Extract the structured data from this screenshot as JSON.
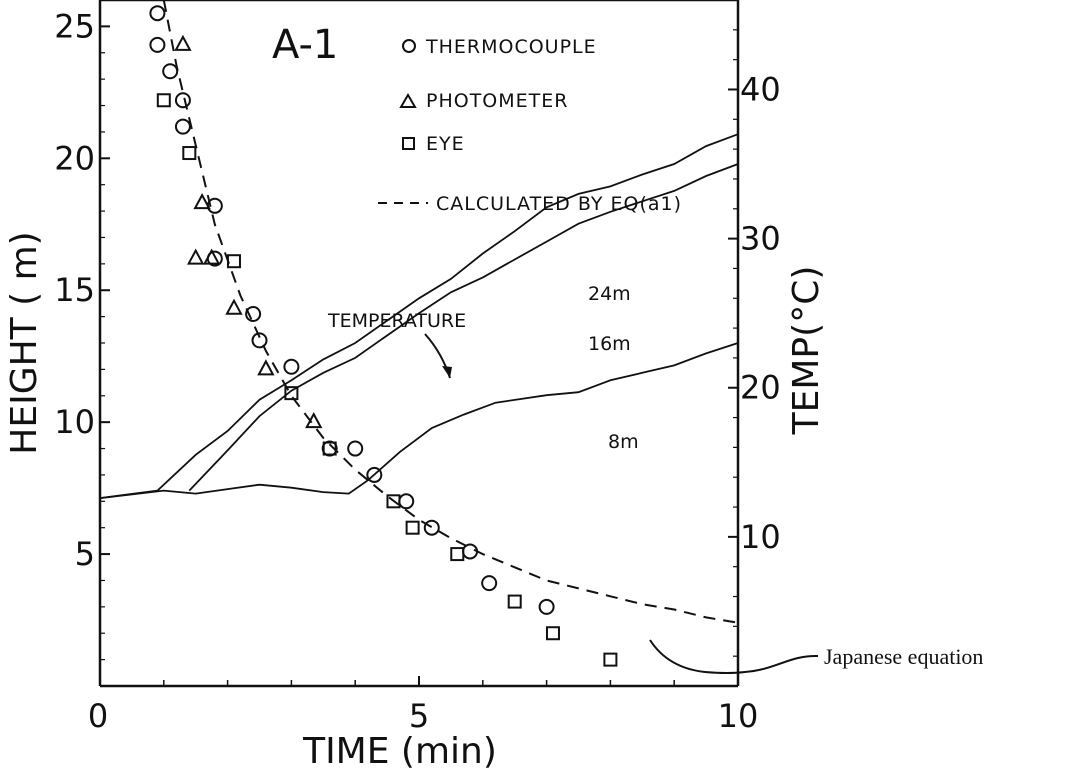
{
  "chart_data": {
    "type": "scatter",
    "panel_label": "A-1",
    "xlabel": "TIME (min)",
    "ylabel": "HEIGHT ( m)",
    "y2label": "TEMP(°C)",
    "xlim": [
      0,
      10
    ],
    "ylim": [
      0,
      26
    ],
    "y2lim": [
      0,
      46
    ],
    "x_ticks": [
      "0",
      "5",
      "10"
    ],
    "y_ticks": [
      "5",
      "10",
      "15",
      "20",
      "25"
    ],
    "y2_ticks": [
      "10",
      "20",
      "30",
      "40"
    ],
    "grid": false,
    "legend_position": "top-right",
    "legend": {
      "thermocouple": "THERMOCOUPLE",
      "photometer": "PHOTOMETER",
      "eye": "EYE",
      "calculated": "CALCULATED BY EQ(a1)"
    },
    "series": [
      {
        "name": "THERMOCOUPLE",
        "marker": "circle",
        "points": [
          [
            0.9,
            25.5
          ],
          [
            0.9,
            24.3
          ],
          [
            1.1,
            23.3
          ],
          [
            1.3,
            22.2
          ],
          [
            1.3,
            21.2
          ],
          [
            1.8,
            18.2
          ],
          [
            1.8,
            16.2
          ],
          [
            2.4,
            14.1
          ],
          [
            2.5,
            13.1
          ],
          [
            3.0,
            12.1
          ],
          [
            3.6,
            9.0
          ],
          [
            4.0,
            9.0
          ],
          [
            4.3,
            8.0
          ],
          [
            4.8,
            7.0
          ],
          [
            5.2,
            6.0
          ],
          [
            5.8,
            5.1
          ],
          [
            6.1,
            3.9
          ],
          [
            7.0,
            3.0
          ]
        ]
      },
      {
        "name": "PHOTOMETER",
        "marker": "triangle",
        "points": [
          [
            1.3,
            24.3
          ],
          [
            1.6,
            18.3
          ],
          [
            1.5,
            16.2
          ],
          [
            1.75,
            16.2
          ],
          [
            2.1,
            14.3
          ],
          [
            2.6,
            12.0
          ],
          [
            3.35,
            10.0
          ]
        ]
      },
      {
        "name": "EYE",
        "marker": "square",
        "points": [
          [
            1.0,
            22.2
          ],
          [
            1.4,
            20.2
          ],
          [
            2.1,
            16.1
          ],
          [
            3.0,
            11.1
          ],
          [
            3.6,
            9.0
          ],
          [
            4.6,
            7.0
          ],
          [
            4.9,
            6.0
          ],
          [
            5.6,
            5.0
          ],
          [
            6.5,
            3.2
          ],
          [
            7.1,
            2.0
          ],
          [
            8.0,
            1.0
          ]
        ]
      },
      {
        "name": "CALCULATED BY EQ(a1)",
        "style": "dashed",
        "points": [
          [
            1.0,
            26.0
          ],
          [
            1.2,
            23.5
          ],
          [
            1.5,
            20.5
          ],
          [
            1.8,
            17.5
          ],
          [
            2.2,
            14.8
          ],
          [
            2.6,
            12.7
          ],
          [
            3.0,
            11.0
          ],
          [
            3.5,
            9.4
          ],
          [
            4.0,
            8.2
          ],
          [
            4.5,
            7.2
          ],
          [
            5.0,
            6.3
          ],
          [
            5.5,
            5.6
          ],
          [
            6.0,
            5.0
          ],
          [
            6.5,
            4.5
          ],
          [
            7.0,
            4.0
          ],
          [
            7.5,
            3.7
          ],
          [
            8.0,
            3.4
          ],
          [
            8.5,
            3.1
          ],
          [
            9.0,
            2.9
          ],
          [
            9.5,
            2.6
          ],
          [
            10.0,
            2.4
          ]
        ]
      }
    ],
    "temperature_label": "TEMPERATURE",
    "temperature_series": [
      {
        "name": "24m",
        "points": [
          [
            0,
            12.6
          ],
          [
            0.9,
            13.1
          ],
          [
            1.5,
            15.5
          ],
          [
            2.0,
            17.1
          ],
          [
            2.5,
            19.2
          ],
          [
            3.0,
            20.5
          ],
          [
            3.5,
            21.9
          ],
          [
            4.0,
            23.0
          ],
          [
            4.5,
            24.5
          ],
          [
            5.0,
            26.0
          ],
          [
            5.5,
            27.3
          ],
          [
            6.0,
            29.0
          ],
          [
            6.5,
            30.5
          ],
          [
            7.0,
            32.1
          ],
          [
            7.5,
            33.0
          ],
          [
            8.0,
            33.5
          ],
          [
            8.5,
            34.3
          ],
          [
            9.0,
            35.0
          ],
          [
            9.5,
            36.2
          ],
          [
            10.0,
            37.0
          ]
        ]
      },
      {
        "name": "16m",
        "points": [
          [
            1.4,
            13.1
          ],
          [
            2.0,
            15.8
          ],
          [
            2.5,
            18.1
          ],
          [
            3.0,
            19.8
          ],
          [
            3.5,
            21.0
          ],
          [
            4.0,
            22.0
          ],
          [
            4.5,
            23.5
          ],
          [
            5.0,
            25.0
          ],
          [
            5.5,
            26.4
          ],
          [
            6.0,
            27.4
          ],
          [
            6.5,
            28.6
          ],
          [
            7.0,
            29.8
          ],
          [
            7.5,
            31.0
          ],
          [
            8.0,
            31.8
          ],
          [
            8.5,
            32.5
          ],
          [
            9.0,
            33.2
          ],
          [
            9.5,
            34.2
          ],
          [
            10.0,
            35.0
          ]
        ]
      },
      {
        "name": "8m",
        "points": [
          [
            0,
            12.6
          ],
          [
            1.0,
            13.1
          ],
          [
            1.5,
            12.9
          ],
          [
            2.0,
            13.2
          ],
          [
            2.5,
            13.5
          ],
          [
            3.0,
            13.3
          ],
          [
            3.5,
            13.0
          ],
          [
            3.9,
            12.9
          ],
          [
            4.2,
            13.8
          ],
          [
            4.7,
            15.7
          ],
          [
            5.2,
            17.3
          ],
          [
            5.7,
            18.2
          ],
          [
            6.2,
            19.0
          ],
          [
            7.0,
            19.5
          ],
          [
            7.5,
            19.7
          ],
          [
            8.0,
            20.5
          ],
          [
            8.5,
            21.0
          ],
          [
            9.0,
            21.5
          ],
          [
            9.5,
            22.3
          ],
          [
            10.0,
            23.0
          ]
        ]
      }
    ],
    "annotation": "Japanese equation"
  }
}
